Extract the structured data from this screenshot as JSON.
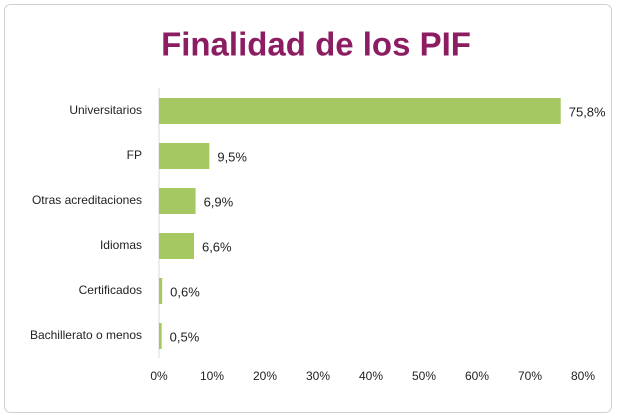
{
  "chart_data": {
    "type": "bar",
    "orientation": "horizontal",
    "title": "Finalidad de los PIF",
    "categories": [
      "Universitarios",
      "FP",
      "Otras acreditaciones",
      "Idiomas",
      "Certificados",
      "Bachillerato o menos"
    ],
    "values": [
      75.8,
      9.5,
      6.9,
      6.6,
      0.6,
      0.5
    ],
    "value_labels": [
      "75,8%",
      "9,5%",
      "6,9%",
      "6,6%",
      "0,6%",
      "0,5%"
    ],
    "color": "#a5c862",
    "xlim": [
      0,
      80
    ],
    "xticks": [
      {
        "value": 0,
        "label": "0%"
      },
      {
        "value": 10,
        "label": "10%"
      },
      {
        "value": 20,
        "label": "20%"
      },
      {
        "value": 30,
        "label": "30%"
      },
      {
        "value": 40,
        "label": "40%"
      },
      {
        "value": 50,
        "label": "50%"
      },
      {
        "value": 60,
        "label": "60%"
      },
      {
        "value": 70,
        "label": "70%"
      },
      {
        "value": 80,
        "label": "80%"
      }
    ],
    "grid": false
  }
}
